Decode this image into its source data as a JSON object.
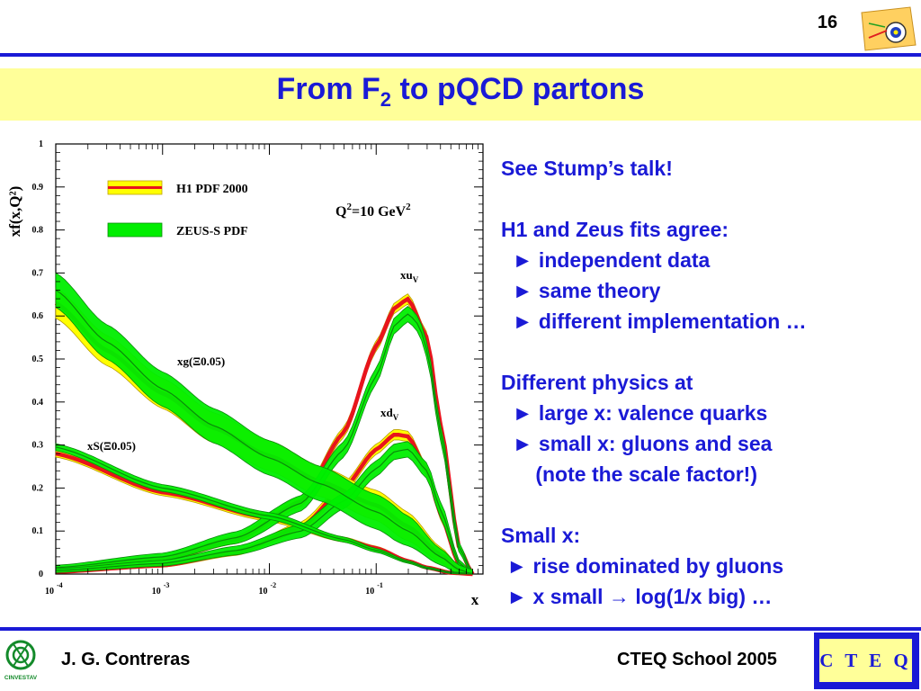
{
  "header": {
    "page_number": "16"
  },
  "title": {
    "main": "From F",
    "sub": "2",
    "rest": " to pQCD partons"
  },
  "chart_data": {
    "type": "line",
    "title": "",
    "xlabel": "x",
    "ylabel": "xf(x,Q²)",
    "xscale": "log",
    "xlim": [
      0.0001,
      1
    ],
    "ylim": [
      0,
      1
    ],
    "x_tick_labels": [
      {
        "base": "10",
        "exp": "-4"
      },
      {
        "base": "10",
        "exp": "-3"
      },
      {
        "base": "10",
        "exp": "-2"
      },
      {
        "base": "10",
        "exp": "-1"
      }
    ],
    "y_tick_labels": [
      "0",
      "0.1",
      "0.2",
      "0.3",
      "0.4",
      "0.5",
      "0.6",
      "0.7",
      "0.8",
      "0.9",
      "1"
    ],
    "annotation_q2": {
      "pre": "Q",
      "sup1": "2",
      "mid": "=10 GeV",
      "sup2": "2"
    },
    "legend": {
      "placement": "top-left",
      "entries": [
        {
          "name": "H1 PDF 2000",
          "color": "#ffff00",
          "line_color": "#e8141c"
        },
        {
          "name": "ZEUS-S PDF",
          "color": "#00ee00",
          "line_color": "#0a8a0a"
        }
      ]
    },
    "curve_labels": [
      {
        "id": "xuv",
        "text": "xu",
        "sub": "V"
      },
      {
        "id": "xdv",
        "text": "xd",
        "sub": "V"
      },
      {
        "id": "xg",
        "text": "xg(Ξ0.05)"
      },
      {
        "id": "xS",
        "text": "xS(Ξ0.05)"
      }
    ],
    "series": [
      {
        "id": "xuv",
        "source": "H1 PDF 2000",
        "x": [
          0.0001,
          0.001,
          0.005,
          0.02,
          0.05,
          0.1,
          0.15,
          0.2,
          0.3,
          0.4,
          0.6,
          0.8
        ],
        "y": [
          0.01,
          0.035,
          0.08,
          0.17,
          0.33,
          0.53,
          0.62,
          0.64,
          0.55,
          0.35,
          0.06,
          0.0
        ]
      },
      {
        "id": "xuv",
        "source": "ZEUS-S PDF",
        "x": [
          0.0001,
          0.001,
          0.005,
          0.02,
          0.05,
          0.1,
          0.15,
          0.2,
          0.25,
          0.3,
          0.4,
          0.6,
          0.8
        ],
        "y": [
          0.015,
          0.04,
          0.085,
          0.165,
          0.29,
          0.46,
          0.58,
          0.605,
          0.58,
          0.52,
          0.33,
          0.06,
          0.0
        ]
      },
      {
        "id": "xdv",
        "source": "H1 PDF 2000",
        "x": [
          0.0001,
          0.001,
          0.005,
          0.02,
          0.05,
          0.1,
          0.15,
          0.2,
          0.3,
          0.4,
          0.6,
          0.8
        ],
        "y": [
          0.005,
          0.02,
          0.05,
          0.11,
          0.2,
          0.29,
          0.325,
          0.32,
          0.24,
          0.14,
          0.02,
          0.0
        ]
      },
      {
        "id": "xdv",
        "source": "ZEUS-S PDF",
        "x": [
          0.0001,
          0.001,
          0.005,
          0.02,
          0.05,
          0.1,
          0.15,
          0.2,
          0.3,
          0.4,
          0.6,
          0.8
        ],
        "y": [
          0.008,
          0.025,
          0.055,
          0.1,
          0.17,
          0.245,
          0.285,
          0.29,
          0.24,
          0.15,
          0.025,
          0.0
        ]
      },
      {
        "id": "xg",
        "source": "H1 PDF 2000",
        "x": [
          0.0001,
          0.0003,
          0.001,
          0.003,
          0.01,
          0.03,
          0.1,
          0.2,
          0.4,
          0.6,
          0.8
        ],
        "y": [
          0.63,
          0.52,
          0.42,
          0.34,
          0.275,
          0.215,
          0.16,
          0.11,
          0.045,
          0.01,
          0.0
        ]
      },
      {
        "id": "xg",
        "source": "ZEUS-S PDF",
        "x": [
          0.0001,
          0.0003,
          0.001,
          0.003,
          0.01,
          0.03,
          0.1,
          0.2,
          0.4,
          0.6,
          0.8
        ],
        "y": [
          0.66,
          0.54,
          0.43,
          0.345,
          0.27,
          0.21,
          0.145,
          0.1,
          0.04,
          0.01,
          0.0
        ]
      },
      {
        "id": "xS",
        "source": "H1 PDF 2000",
        "x": [
          0.0001,
          0.001,
          0.01,
          0.05,
          0.1,
          0.2,
          0.3,
          0.5,
          0.8
        ],
        "y": [
          0.28,
          0.19,
          0.13,
          0.08,
          0.06,
          0.03,
          0.015,
          0.003,
          0.0
        ]
      },
      {
        "id": "xS",
        "source": "ZEUS-S PDF",
        "x": [
          0.0001,
          0.001,
          0.01,
          0.05,
          0.1,
          0.2,
          0.3,
          0.5,
          0.8
        ],
        "y": [
          0.295,
          0.2,
          0.135,
          0.08,
          0.055,
          0.028,
          0.014,
          0.003,
          0.0
        ]
      }
    ],
    "band_half_width": [
      {
        "id": "xuv",
        "source": "H1 PDF 2000",
        "value": 0.012
      },
      {
        "id": "xuv",
        "source": "ZEUS-S PDF",
        "value": 0.018
      },
      {
        "id": "xdv",
        "source": "H1 PDF 2000",
        "value": 0.012
      },
      {
        "id": "xdv",
        "source": "ZEUS-S PDF",
        "value": 0.018
      },
      {
        "id": "xg",
        "source": "H1 PDF 2000",
        "value": 0.035
      },
      {
        "id": "xg",
        "source": "ZEUS-S PDF",
        "value": 0.04
      },
      {
        "id": "xS",
        "source": "H1 PDF 2000",
        "value": 0.008
      },
      {
        "id": "xS",
        "source": "ZEUS-S PDF",
        "value": 0.008
      }
    ]
  },
  "notes": [
    "See Stump’s talk!",
    "",
    "H1 and Zeus fits agree:",
    "  ► independent data",
    "  ► same theory",
    "  ► different implementation …",
    "",
    "Different physics at",
    "  ► large x: valence quarks",
    "  ► small x: gluons and sea",
    "      (note the scale factor!)",
    "",
    "Small x:",
    " ► rise dominated by gluons",
    " ► x small → log(1/x big) …"
  ],
  "footer": {
    "author": "J. G. Contreras",
    "event": "CTEQ School 2005",
    "logo_text": "C T E Q",
    "left_logo_caption": "CINVESTAV"
  },
  "colors": {
    "accent": "#1a1ad6",
    "title_band": "#ffff99",
    "h1_band": "#ffff00",
    "h1_line": "#e8141c",
    "zeus_band": "#00ee00",
    "zeus_line": "#0a8a0a"
  }
}
